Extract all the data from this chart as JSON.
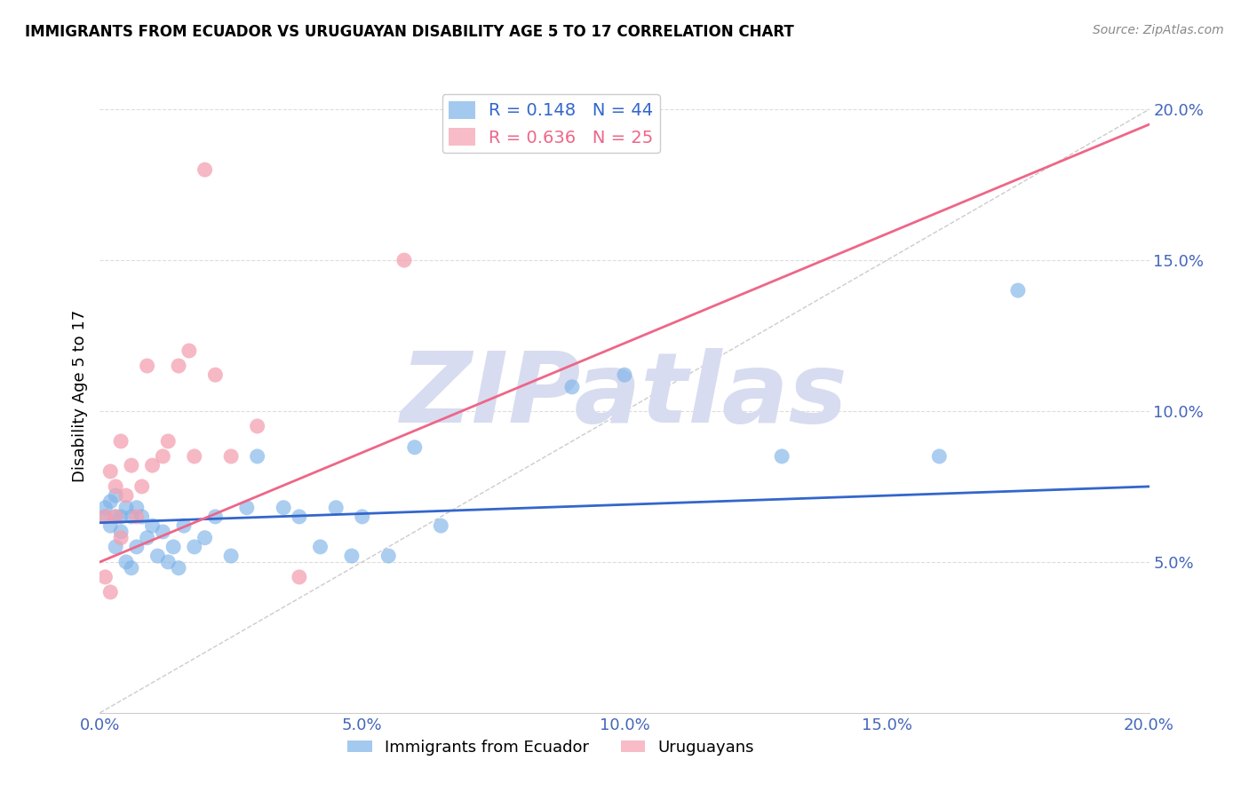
{
  "title": "IMMIGRANTS FROM ECUADOR VS URUGUAYAN DISABILITY AGE 5 TO 17 CORRELATION CHART",
  "source": "Source: ZipAtlas.com",
  "ylabel": "Disability Age 5 to 17",
  "legend_label_blue": "Immigrants from Ecuador",
  "legend_label_pink": "Uruguayans",
  "R_blue": 0.148,
  "N_blue": 44,
  "R_pink": 0.636,
  "N_pink": 25,
  "color_blue": "#7EB3E8",
  "color_pink": "#F4A0B0",
  "color_blue_line": "#3366CC",
  "color_pink_line": "#EE6688",
  "color_diagonal": "#CCCCCC",
  "color_axis_labels": "#4466BB",
  "xlim": [
    0.0,
    0.2
  ],
  "ylim": [
    0.0,
    0.21
  ],
  "yticks": [
    0.05,
    0.1,
    0.15,
    0.2
  ],
  "xticks": [
    0.0,
    0.05,
    0.1,
    0.15,
    0.2
  ],
  "blue_scatter_x": [
    0.001,
    0.001,
    0.002,
    0.002,
    0.003,
    0.003,
    0.003,
    0.004,
    0.004,
    0.005,
    0.005,
    0.006,
    0.006,
    0.007,
    0.007,
    0.008,
    0.009,
    0.01,
    0.011,
    0.012,
    0.013,
    0.014,
    0.015,
    0.016,
    0.018,
    0.02,
    0.022,
    0.025,
    0.028,
    0.03,
    0.035,
    0.038,
    0.042,
    0.045,
    0.048,
    0.05,
    0.055,
    0.06,
    0.065,
    0.09,
    0.1,
    0.13,
    0.16,
    0.175
  ],
  "blue_scatter_y": [
    0.065,
    0.068,
    0.062,
    0.07,
    0.055,
    0.065,
    0.072,
    0.06,
    0.065,
    0.05,
    0.068,
    0.048,
    0.065,
    0.055,
    0.068,
    0.065,
    0.058,
    0.062,
    0.052,
    0.06,
    0.05,
    0.055,
    0.048,
    0.062,
    0.055,
    0.058,
    0.065,
    0.052,
    0.068,
    0.085,
    0.068,
    0.065,
    0.055,
    0.068,
    0.052,
    0.065,
    0.052,
    0.088,
    0.062,
    0.108,
    0.112,
    0.085,
    0.085,
    0.14
  ],
  "pink_scatter_x": [
    0.001,
    0.001,
    0.002,
    0.002,
    0.003,
    0.003,
    0.004,
    0.004,
    0.005,
    0.006,
    0.007,
    0.008,
    0.009,
    0.01,
    0.012,
    0.013,
    0.015,
    0.017,
    0.018,
    0.02,
    0.022,
    0.025,
    0.03,
    0.038,
    0.058
  ],
  "pink_scatter_y": [
    0.045,
    0.065,
    0.04,
    0.08,
    0.065,
    0.075,
    0.058,
    0.09,
    0.072,
    0.082,
    0.065,
    0.075,
    0.115,
    0.082,
    0.085,
    0.09,
    0.115,
    0.12,
    0.085,
    0.18,
    0.112,
    0.085,
    0.095,
    0.045,
    0.15
  ],
  "watermark_text": "ZIPatlas",
  "watermark_color": "#D8DCF0",
  "background_color": "#FFFFFF",
  "grid_color": "#DDDDDD",
  "blue_trend_x": [
    0.0,
    0.2
  ],
  "blue_trend_y": [
    0.063,
    0.075
  ],
  "pink_trend_x": [
    0.0,
    0.2
  ],
  "pink_trend_y": [
    0.05,
    0.195
  ]
}
